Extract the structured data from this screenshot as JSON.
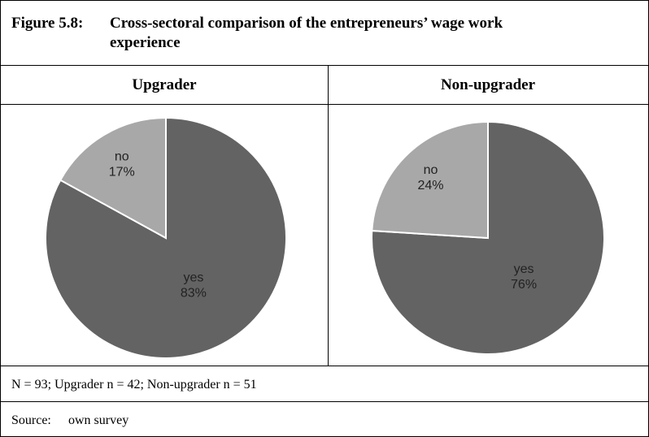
{
  "figure": {
    "label": "Figure 5.8:",
    "title": "Cross-sectoral comparison of the entrepreneurs’ wage work experience"
  },
  "chart_data": [
    {
      "type": "pie",
      "title": "Upgrader",
      "categories": [
        "yes",
        "no"
      ],
      "values": [
        83,
        17
      ],
      "value_labels": [
        "83%",
        "17%"
      ],
      "colors": [
        "#636363",
        "#a8a8a8"
      ]
    },
    {
      "type": "pie",
      "title": "Non-upgrader",
      "categories": [
        "yes",
        "no"
      ],
      "values": [
        76,
        24
      ],
      "value_labels": [
        "76%",
        "24%"
      ],
      "colors": [
        "#636363",
        "#a8a8a8"
      ]
    }
  ],
  "note": "N = 93; Upgrader n = 42; Non-upgrader n = 51",
  "source": {
    "label": "Source:",
    "text": "own survey"
  }
}
